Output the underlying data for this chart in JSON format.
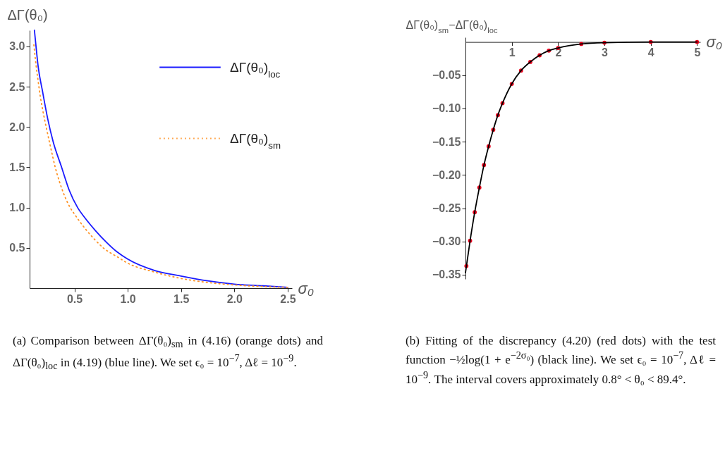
{
  "chart_data": [
    {
      "type": "line",
      "ylabel": "ΔΓ(θ₀)",
      "xlabel": "σ₀",
      "xlim": [
        0.08,
        2.54
      ],
      "ylim": [
        0,
        3.2
      ],
      "xticks": [
        0.5,
        {
          "value": 1,
          "label": "1.0"
        },
        1.5,
        {
          "value": 2,
          "label": "2.0"
        },
        2.5
      ],
      "yticks": [
        0.5,
        {
          "value": 1,
          "label": "1.0"
        },
        1.5,
        {
          "value": 2,
          "label": "2.0"
        },
        2.5,
        {
          "value": 3,
          "label": "3.0"
        }
      ],
      "legend": "top right",
      "annotations": [
        "(a) Comparison between ΔΓ(θ₀)$_{sm}$ in (4.16) (orange dots) and ΔΓ(θ₀)$_{loc}$ in (4.19) (blue line). We set ϵ₀ = 10$^{−7}$, Δℓ = 10$^{−9}$."
      ],
      "series": [
        {
          "name": "ΔΓ(θ₀)$_{loc}$",
          "color": "#1a1aff",
          "line_style": "solid",
          "x": [
            0.125,
            0.14,
            0.16,
            0.2,
            0.25,
            0.3,
            0.38,
            0.45,
            0.53,
            0.6,
            0.7,
            0.8,
            0.9,
            1.0,
            1.25,
            1.5,
            1.75,
            2.0,
            2.25,
            2.5
          ],
          "values": [
            3.2,
            3.0,
            2.75,
            2.45,
            2.1,
            1.82,
            1.5,
            1.22,
            1.0,
            0.87,
            0.71,
            0.57,
            0.45,
            0.36,
            0.22,
            0.15,
            0.09,
            0.05,
            0.03,
            0.01
          ]
        },
        {
          "name": "ΔΓ(θ₀)$_{sm}$",
          "color": "#ff9326",
          "line_style": "dotted",
          "x": [
            0.12,
            0.14,
            0.16,
            0.18,
            0.2,
            0.24,
            0.28,
            0.32,
            0.36,
            0.46,
            0.5,
            0.6,
            0.7,
            0.77,
            0.9,
            1.0,
            1.25,
            1.5,
            1.75,
            2.0,
            2.25,
            2.5
          ],
          "values": [
            3.02,
            2.77,
            2.57,
            2.38,
            2.23,
            1.97,
            1.73,
            1.5,
            1.32,
            1.0,
            0.92,
            0.74,
            0.59,
            0.5,
            0.39,
            0.31,
            0.2,
            0.12,
            0.07,
            0.04,
            0.02,
            0.01
          ]
        }
      ]
    },
    {
      "type": "line",
      "ylabel": "ΔΓ(θ₀)$_{sm}$−ΔΓ(θ₀)$_{loc}$",
      "xlabel": "σ₀",
      "xlim": [
        0,
        5.07
      ],
      "ylim": [
        -0.3565,
        0.007
      ],
      "xticks": [
        1,
        2,
        3,
        4,
        5
      ],
      "yticks": [
        {
          "value": -0.35,
          "label": "−0.35"
        },
        {
          "value": -0.3,
          "label": "−0.30"
        },
        {
          "value": -0.25,
          "label": "−0.25"
        },
        {
          "value": -0.2,
          "label": "−0.20"
        },
        {
          "value": -0.15,
          "label": "−0.15"
        },
        {
          "value": -0.1,
          "label": "−0.10"
        },
        {
          "value": -0.05,
          "label": "−0.05"
        }
      ],
      "annotations": [
        "(b) Fitting of the discrepancy (4.20) (red dots) with the test function −½log(1 + e$^{−2σ₀}$) (black line). We set ϵ₀ = 10$^{−7}$, Δℓ = 10$^{−9}$. The interval covers approximately 0.8° < θ₀ < 89.4°."
      ],
      "series": [
        {
          "type": "scatter",
          "color": "#e8001c",
          "x": [
            0.02,
            0.1,
            0.2,
            0.3,
            0.4,
            0.5,
            0.6,
            0.7,
            0.8,
            1.0,
            1.2,
            1.4,
            1.6,
            1.8,
            2.0,
            2.5,
            3.0,
            4.0,
            5.0
          ],
          "values": [
            -0.337,
            -0.299,
            -0.256,
            -0.219,
            -0.185,
            -0.157,
            -0.132,
            -0.11,
            -0.092,
            -0.063,
            -0.043,
            -0.03,
            -0.02,
            -0.013,
            -0.009,
            -0.003,
            -0.001,
            0,
            0
          ]
        },
        {
          "color": "#000000",
          "line_style": "solid",
          "x": [
            0,
            0.1,
            0.2,
            0.3,
            0.4,
            0.5,
            0.6,
            0.7,
            0.8,
            1.0,
            1.2,
            1.4,
            1.6,
            1.8,
            2.0,
            2.5,
            3.0,
            4.0,
            5.0
          ],
          "values": [
            -0.347,
            -0.299,
            -0.256,
            -0.219,
            -0.185,
            -0.157,
            -0.132,
            -0.11,
            -0.092,
            -0.063,
            -0.043,
            -0.03,
            -0.02,
            -0.013,
            -0.009,
            -0.003,
            -0.001,
            0,
            0
          ]
        }
      ]
    }
  ]
}
